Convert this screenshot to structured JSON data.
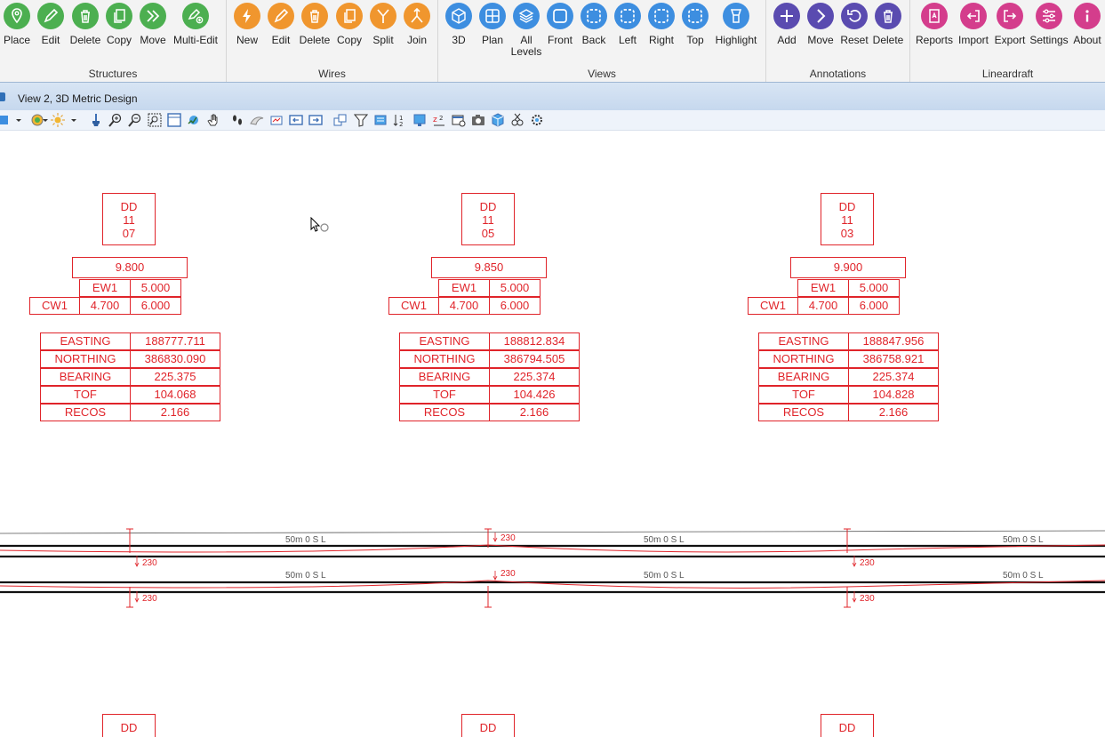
{
  "ribbon": {
    "groups": [
      {
        "label": "Structures",
        "buttons": [
          {
            "label": "Place",
            "icon": "place-pin-icon"
          },
          {
            "label": "Edit",
            "icon": "pencil-icon"
          },
          {
            "label": "Delete",
            "icon": "trash-icon"
          },
          {
            "label": "Copy",
            "icon": "copy-icon"
          },
          {
            "label": "Move",
            "icon": "double-chevron-icon"
          },
          {
            "label": "Multi-Edit",
            "icon": "multi-edit-icon"
          }
        ]
      },
      {
        "label": "Wires",
        "buttons": [
          {
            "label": "New",
            "icon": "bolt-icon"
          },
          {
            "label": "Edit",
            "icon": "pencil-icon"
          },
          {
            "label": "Delete",
            "icon": "trash-icon"
          },
          {
            "label": "Copy",
            "icon": "copy-icon"
          },
          {
            "label": "Split",
            "icon": "split-icon"
          },
          {
            "label": "Join",
            "icon": "join-icon"
          }
        ]
      },
      {
        "label": "Views",
        "buttons": [
          {
            "label": "3D",
            "icon": "cube-icon"
          },
          {
            "label": "Plan",
            "icon": "grid-icon"
          },
          {
            "label": "All Levels",
            "icon": "layers-icon"
          },
          {
            "label": "Front",
            "icon": "square-icon"
          },
          {
            "label": "Back",
            "icon": "dashed-square-icon"
          },
          {
            "label": "Left",
            "icon": "dashed-square-icon"
          },
          {
            "label": "Right",
            "icon": "dashed-square-icon"
          },
          {
            "label": "Top",
            "icon": "dashed-square-icon"
          },
          {
            "label": "Highlight",
            "icon": "highlighter-icon"
          }
        ]
      },
      {
        "label": "Annotations",
        "buttons": [
          {
            "label": "Add",
            "icon": "plus-icon"
          },
          {
            "label": "Move",
            "icon": "chevron-right-icon"
          },
          {
            "label": "Reset",
            "icon": "undo-icon"
          },
          {
            "label": "Delete",
            "icon": "trash-icon"
          }
        ]
      },
      {
        "label": "Lineardraft",
        "buttons": [
          {
            "label": "Reports",
            "icon": "report-icon"
          },
          {
            "label": "Import",
            "icon": "import-icon"
          },
          {
            "label": "Export",
            "icon": "export-icon"
          },
          {
            "label": "Settings",
            "icon": "sliders-icon"
          },
          {
            "label": "About",
            "icon": "info-icon"
          }
        ]
      }
    ]
  },
  "view": {
    "title": "View 2, 3D Metric Design"
  },
  "structures": [
    {
      "id_lines": [
        "DD",
        "11",
        "07"
      ],
      "height": "9.800",
      "ew1_label": "EW1",
      "ew1_value": "5.000",
      "cw1_label": "CW1",
      "cw1_a": "4.700",
      "cw1_b": "6.000",
      "table": [
        [
          "EASTING",
          "188777.711"
        ],
        [
          "NORTHING",
          "386830.090"
        ],
        [
          "BEARING",
          "225.375"
        ],
        [
          "TOF",
          "104.068"
        ],
        [
          "RECOS",
          "2.166"
        ]
      ]
    },
    {
      "id_lines": [
        "DD",
        "11",
        "05"
      ],
      "height": "9.850",
      "ew1_label": "EW1",
      "ew1_value": "5.000",
      "cw1_label": "CW1",
      "cw1_a": "4.700",
      "cw1_b": "6.000",
      "table": [
        [
          "EASTING",
          "188812.834"
        ],
        [
          "NORTHING",
          "386794.505"
        ],
        [
          "BEARING",
          "225.374"
        ],
        [
          "TOF",
          "104.426"
        ],
        [
          "RECOS",
          "2.166"
        ]
      ]
    },
    {
      "id_lines": [
        "DD",
        "11",
        "03"
      ],
      "height": "9.900",
      "ew1_label": "EW1",
      "ew1_value": "5.000",
      "cw1_label": "CW1",
      "cw1_a": "4.700",
      "cw1_b": "6.000",
      "table": [
        [
          "EASTING",
          "188847.956"
        ],
        [
          "NORTHING",
          "386758.921"
        ],
        [
          "BEARING",
          "225.374"
        ],
        [
          "TOF",
          "104.828"
        ],
        [
          "RECOS",
          "2.166"
        ]
      ]
    }
  ],
  "bottom_labels": [
    "DD",
    "DD",
    "DD"
  ],
  "span_label": "50m 0 S L",
  "dim_label": "230",
  "colors": {
    "annotation": "#e0242a",
    "structures_group": "#4caf50",
    "wires_group": "#f0962e",
    "views_group": "#3d8ee0",
    "annotations_group": "#5a4bb0",
    "lineardraft_group": "#d43d8c"
  }
}
